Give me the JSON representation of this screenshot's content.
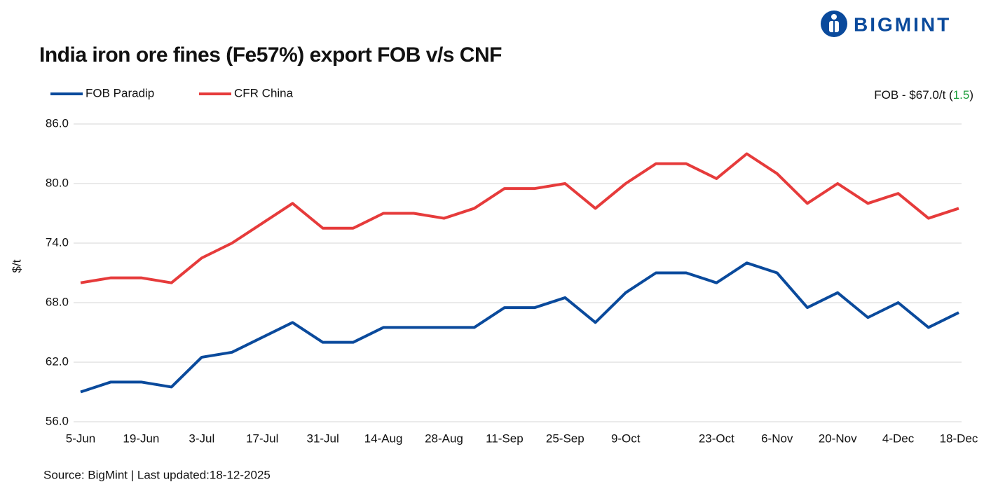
{
  "brand": "BIGMINT",
  "chart_data": {
    "type": "line",
    "title": "India iron ore fines (Fe57%) export FOB v/s CNF",
    "y_label": "$/t",
    "annotation": "FOB - $67.0/t",
    "annotation_change": "1.5",
    "annotation_change_color": "#1a9e3a",
    "source": "Source: BigMint | Last updated:18-12-2025",
    "categories": [
      "5-Jun",
      null,
      "19-Jun",
      null,
      "3-Jul",
      null,
      "17-Jul",
      null,
      "31-Jul",
      null,
      "14-Aug",
      null,
      "28-Aug",
      null,
      "11-Sep",
      null,
      "25-Sep",
      null,
      "9-Oct",
      null,
      null,
      "23-Oct",
      null,
      "6-Nov",
      null,
      "20-Nov",
      null,
      "4-Dec",
      null,
      "18-Dec"
    ],
    "series": [
      {
        "name": "FOB Paradip",
        "color": "#0a4a9c",
        "values": [
          59.0,
          60.0,
          60.0,
          59.5,
          62.5,
          63.0,
          64.5,
          66.0,
          64.0,
          64.0,
          65.5,
          65.5,
          65.5,
          65.5,
          67.5,
          67.5,
          68.5,
          66.0,
          69.0,
          71.0,
          71.0,
          70.0,
          72.0,
          71.0,
          67.5,
          69.0,
          66.5,
          68.0,
          65.5,
          67.0
        ]
      },
      {
        "name": "CFR China",
        "color": "#e63b3b",
        "values": [
          70.0,
          70.5,
          70.5,
          70.0,
          72.5,
          74.0,
          76.0,
          78.0,
          75.5,
          75.5,
          77.0,
          77.0,
          76.5,
          77.5,
          79.5,
          79.5,
          80.0,
          77.5,
          80.0,
          82.0,
          82.0,
          80.5,
          83.0,
          81.0,
          78.0,
          80.0,
          78.0,
          79.0,
          76.5,
          77.5
        ]
      }
    ],
    "ylim": [
      56,
      86
    ],
    "yticks": [
      {
        "value": 56,
        "label": "56.0"
      },
      {
        "value": 62,
        "label": "62.0"
      },
      {
        "value": 68,
        "label": "68.0"
      },
      {
        "value": 74,
        "label": "74.0"
      },
      {
        "value": 80,
        "label": "80.0"
      },
      {
        "value": 86,
        "label": "86.0"
      }
    ],
    "grid": true,
    "legend": "top-left"
  }
}
